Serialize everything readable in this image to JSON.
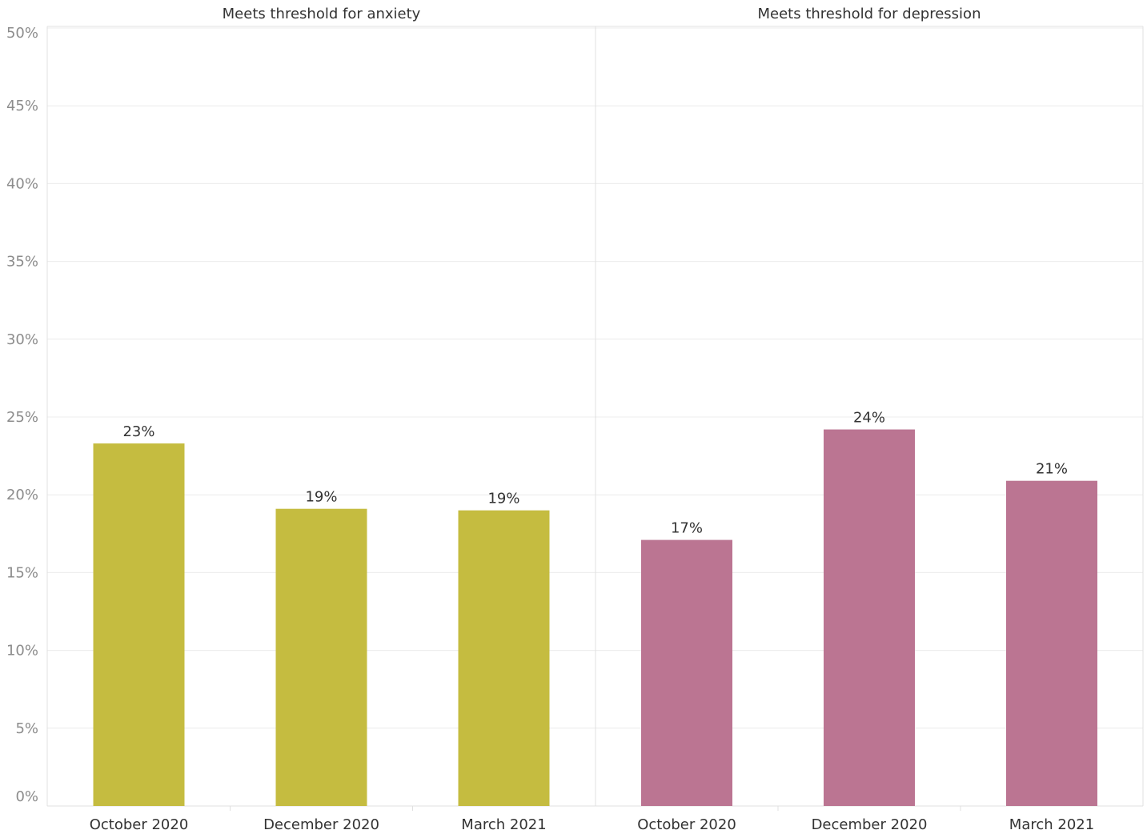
{
  "chart_data": {
    "type": "bar",
    "ylim": [
      0,
      50
    ],
    "yticks": [
      "0%",
      "5%",
      "10%",
      "15%",
      "20%",
      "25%",
      "30%",
      "35%",
      "40%",
      "45%",
      "50%"
    ],
    "grid": true,
    "panels": [
      {
        "title": "Meets threshold for anxiety",
        "categories": [
          "October 2020",
          "December 2020",
          "March 2021"
        ],
        "values": [
          23.3,
          19.1,
          19.0
        ],
        "labels": [
          "23%",
          "19%",
          "19%"
        ],
        "color": "#c5bc40"
      },
      {
        "title": "Meets threshold for depression",
        "categories": [
          "October 2020",
          "December 2020",
          "March 2021"
        ],
        "values": [
          17.1,
          24.2,
          20.9
        ],
        "labels": [
          "17%",
          "24%",
          "21%"
        ],
        "color": "#bb7592"
      }
    ]
  }
}
